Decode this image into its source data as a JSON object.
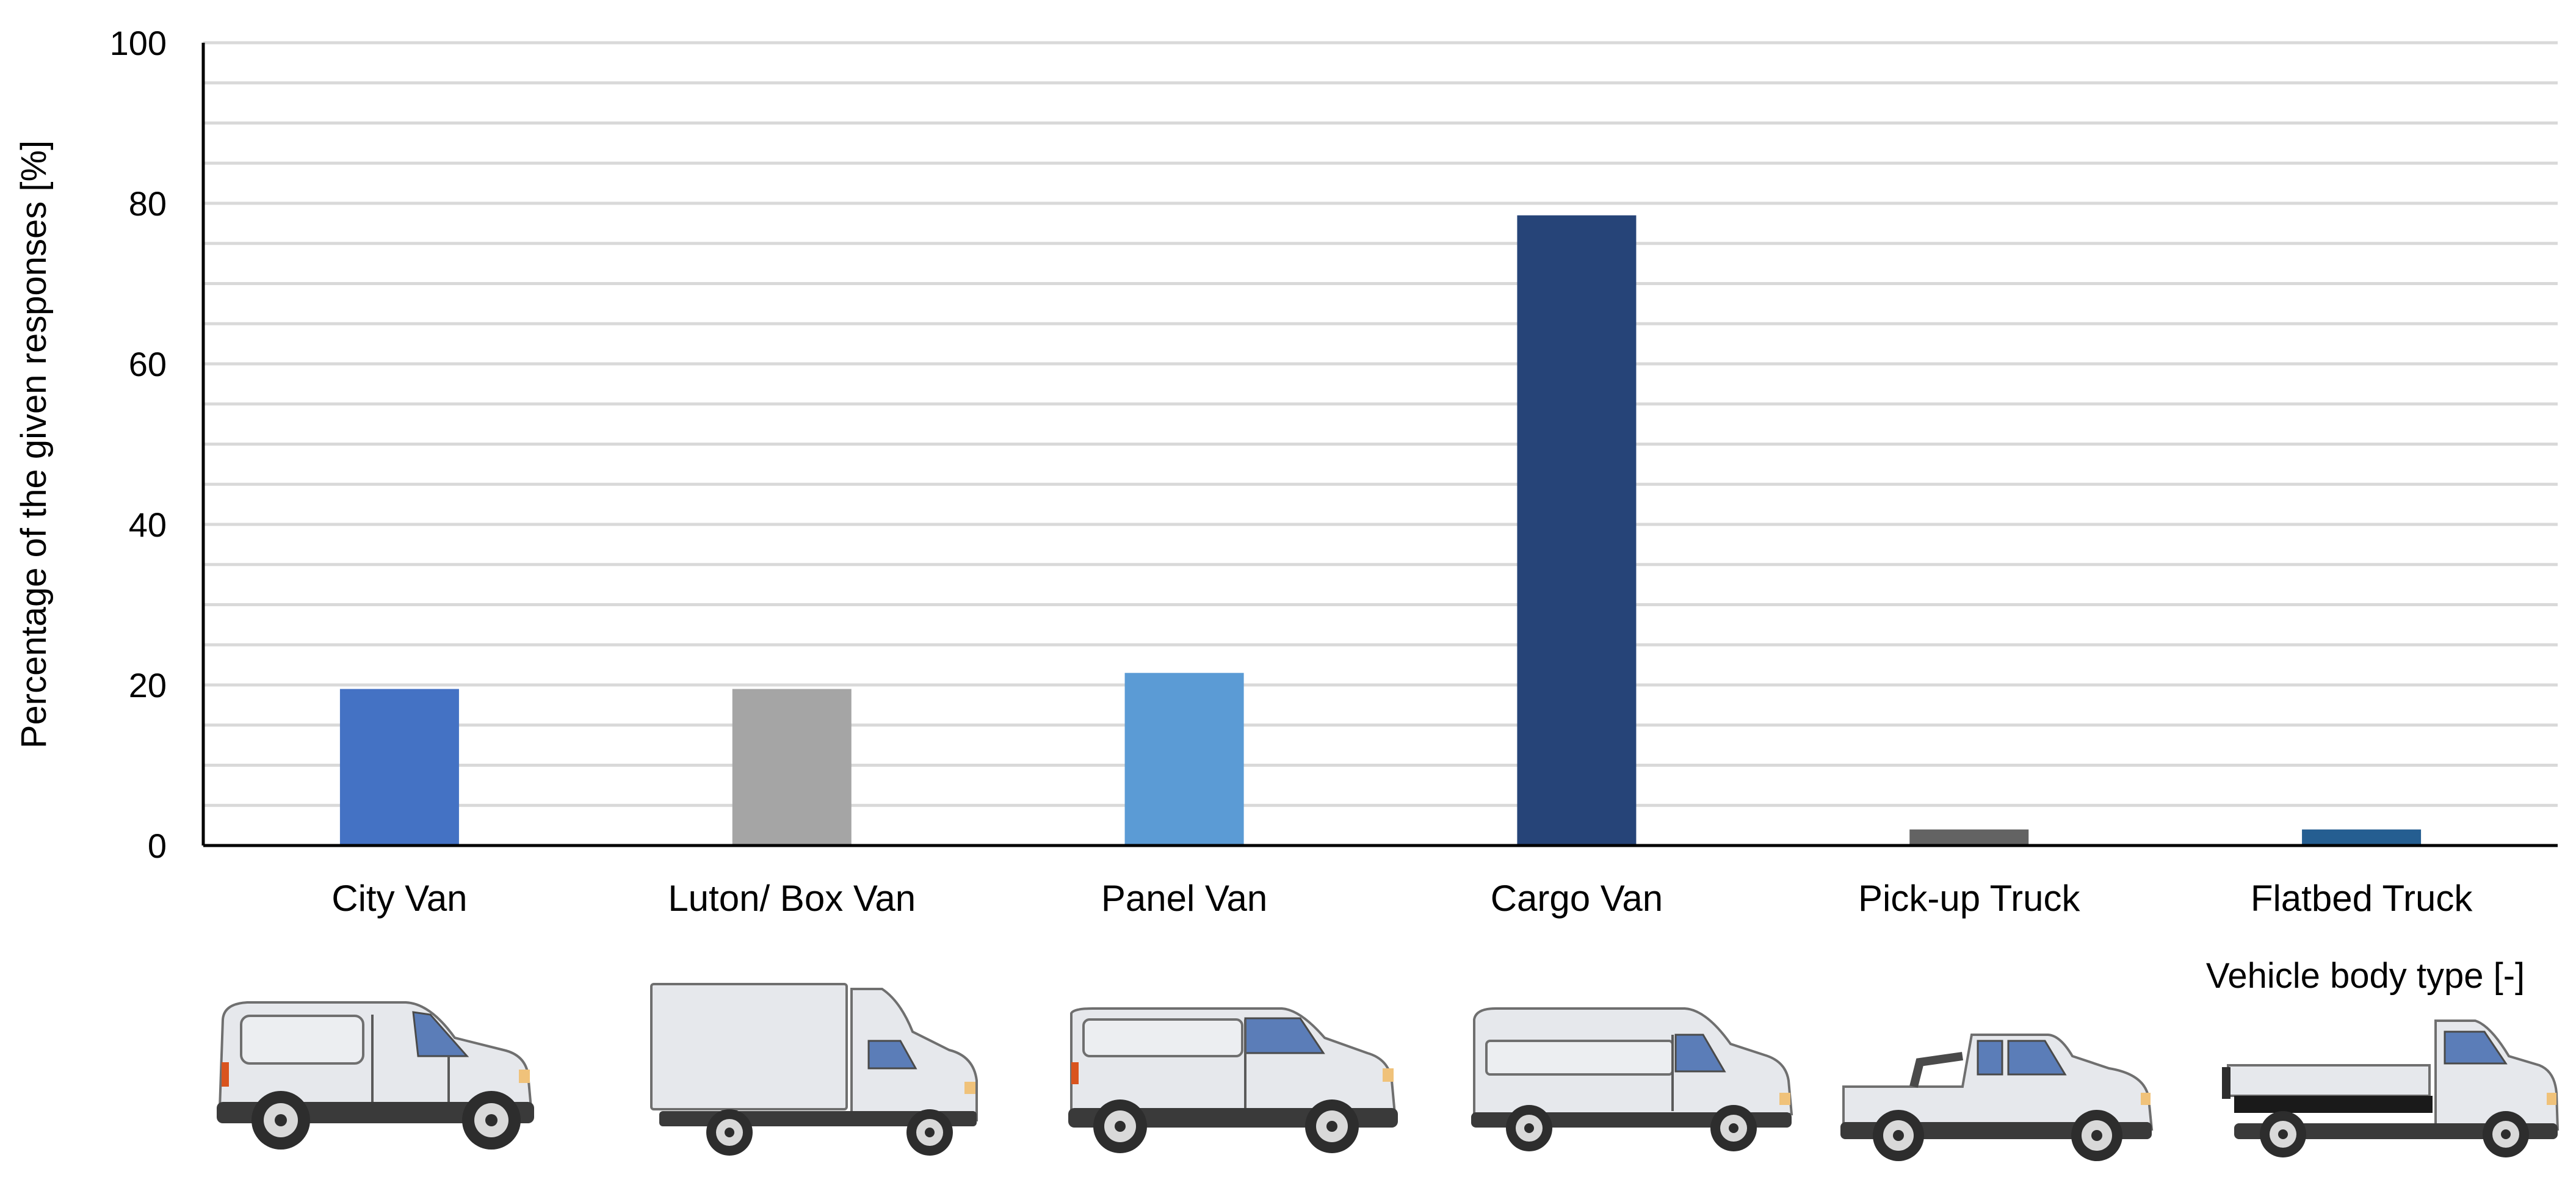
{
  "chart_data": {
    "type": "bar",
    "categories": [
      "City Van",
      "Luton/ Box Van",
      "Panel Van",
      "Cargo Van",
      "Pick-up Truck",
      "Flatbed Truck"
    ],
    "values": [
      19.5,
      19.5,
      21.5,
      78.5,
      2,
      2
    ],
    "colors": [
      "#4472c4",
      "#a5a5a5",
      "#5b9bd5",
      "#264478",
      "#636363",
      "#255e91"
    ],
    "xlabel": "Vehicle body type [-]",
    "ylabel": "Percentage of the given responses [%]",
    "ylim": [
      0,
      100
    ],
    "yticks": [
      "0",
      "20",
      "40",
      "60",
      "80",
      "100"
    ],
    "minor_gridline_step": 5,
    "grid": true,
    "vehicle_icons": [
      "city-van-icon",
      "box-van-icon",
      "panel-van-icon",
      "cargo-van-icon",
      "pickup-truck-icon",
      "flatbed-truck-icon"
    ]
  }
}
